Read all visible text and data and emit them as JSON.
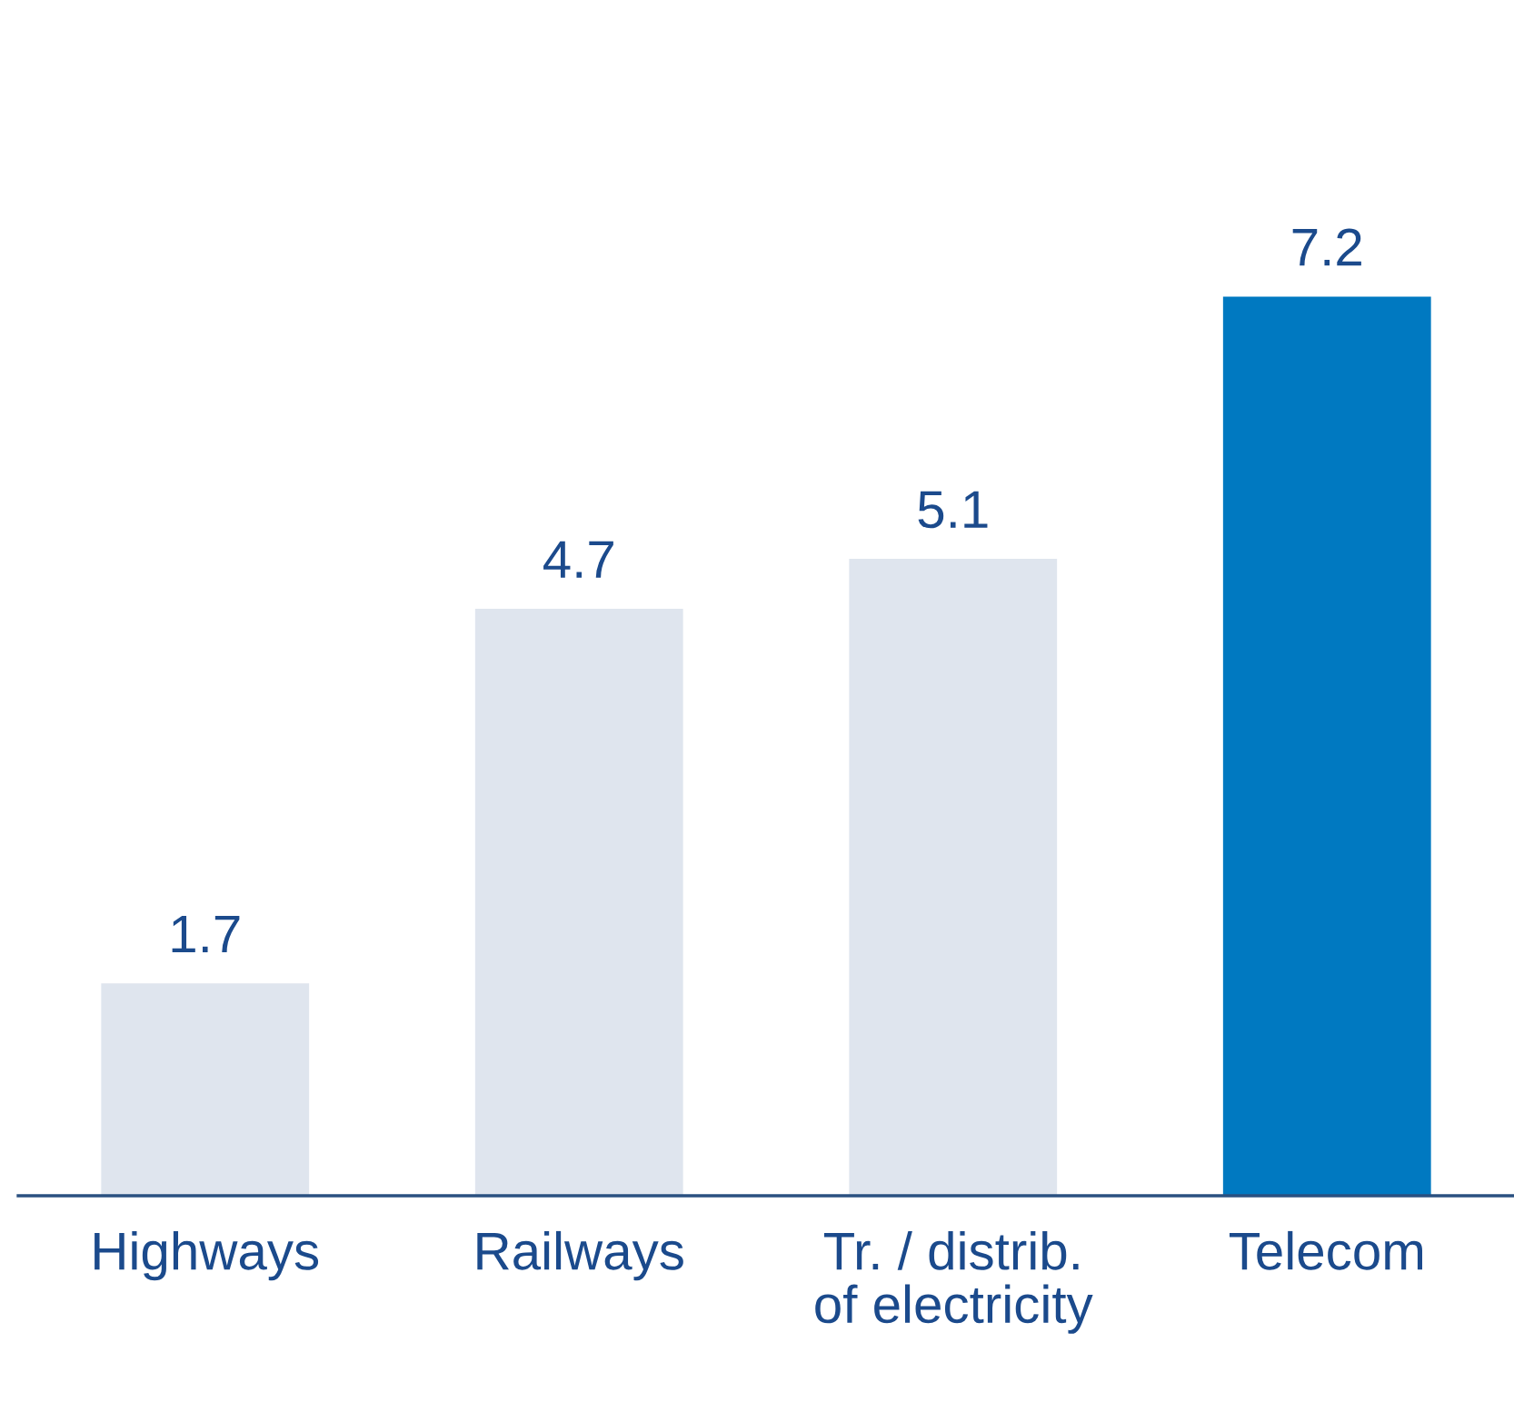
{
  "chart_data": {
    "type": "bar",
    "categories": [
      "Highways",
      "Railways",
      "Tr. / distrib.\nof electricity",
      "Telecom"
    ],
    "values": [
      1.7,
      4.7,
      5.1,
      7.2
    ],
    "colors": [
      "#dfe5ee",
      "#dfe5ee",
      "#dfe5ee",
      "#0079c1"
    ],
    "data_labels": true,
    "grid": false,
    "legend": false
  }
}
